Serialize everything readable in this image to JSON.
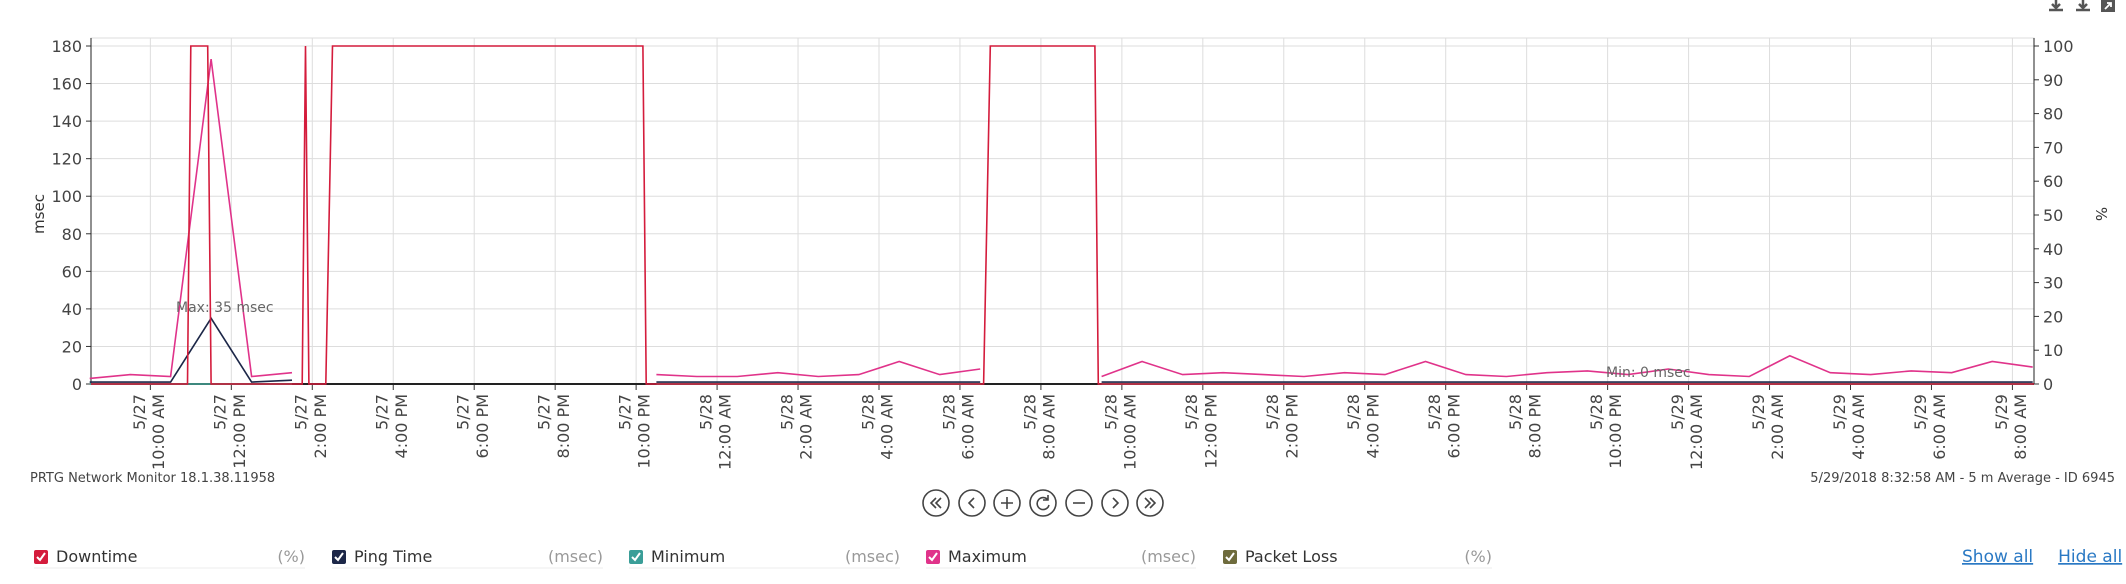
{
  "chart_data": {
    "type": "line",
    "ylabel": "msec",
    "y2label": "%",
    "xlim": [
      "5/27 8:32 AM",
      "5/29 8:32 AM"
    ],
    "xticks": [
      "5/27 10:00 AM",
      "5/27 12:00 PM",
      "5/27 2:00 PM",
      "5/27 4:00 PM",
      "5/27 6:00 PM",
      "5/27 8:00 PM",
      "5/27 10:00 PM",
      "5/28 12:00 AM",
      "5/28 2:00 AM",
      "5/28 4:00 AM",
      "5/28 6:00 AM",
      "5/28 8:00 AM",
      "5/28 10:00 AM",
      "5/28 12:00 PM",
      "5/28 2:00 PM",
      "5/28 4:00 PM",
      "5/28 6:00 PM",
      "5/28 8:00 PM",
      "5/28 10:00 PM",
      "5/29 12:00 AM",
      "5/29 2:00 AM",
      "5/29 4:00 AM",
      "5/29 6:00 AM",
      "5/29 8:00 AM"
    ],
    "ylim": [
      0,
      180
    ],
    "yticks": [
      0,
      20,
      40,
      60,
      80,
      100,
      120,
      140,
      160,
      180
    ],
    "y2lim": [
      0,
      100
    ],
    "y2ticks": [
      0,
      10,
      20,
      30,
      40,
      50,
      60,
      70,
      80,
      90,
      100
    ],
    "grid": true,
    "x": [
      "5/27 8:30 AM",
      "5/27 9:30 AM",
      "5/27 10:30 AM",
      "5/27 11:30 AM",
      "5/27 12:30 PM",
      "5/27 1:30 PM",
      "5/27 2:30 PM",
      "5/27 3:30 PM",
      "5/27 4:30 PM",
      "5/27 5:30 PM",
      "5/27 6:30 PM",
      "5/27 7:30 PM",
      "5/27 8:30 PM",
      "5/27 9:30 PM",
      "5/27 10:30 PM",
      "5/27 11:30 PM",
      "5/28 12:30 AM",
      "5/28 1:30 AM",
      "5/28 2:30 AM",
      "5/28 3:30 AM",
      "5/28 4:30 AM",
      "5/28 5:30 AM",
      "5/28 6:30 AM",
      "5/28 7:30 AM",
      "5/28 8:30 AM",
      "5/28 9:30 AM",
      "5/28 10:30 AM",
      "5/28 11:30 AM",
      "5/28 12:30 PM",
      "5/28 1:30 PM",
      "5/28 2:30 PM",
      "5/28 3:30 PM",
      "5/28 4:30 PM",
      "5/28 5:30 PM",
      "5/28 6:30 PM",
      "5/28 7:30 PM",
      "5/28 8:30 PM",
      "5/28 9:30 PM",
      "5/28 10:30 PM",
      "5/28 11:30 PM",
      "5/29 12:30 AM",
      "5/29 1:30 AM",
      "5/29 2:30 AM",
      "5/29 3:30 AM",
      "5/29 4:30 AM",
      "5/29 5:30 AM",
      "5/29 6:30 AM",
      "5/29 7:30 AM",
      "5/29 8:30 AM"
    ],
    "series": [
      {
        "name": "Downtime",
        "unit": "(%)",
        "color": "#d41c3c",
        "axis": "y2",
        "x": [
          "5/27 8:32 AM",
          "5/27 10:55 AM",
          "5/27 11:00 AM",
          "5/27 11:25 AM",
          "5/27 11:30 AM",
          "5/27 1:45 PM",
          "5/27 1:50 PM",
          "5/27 1:55 PM",
          "5/27 2:20 PM",
          "5/27 2:30 PM",
          "5/27 10:10 PM",
          "5/27 10:15 PM",
          "5/28 6:35 AM",
          "5/28 6:45 AM",
          "5/28 9:20 AM",
          "5/28 9:25 AM",
          "5/29 8:32 AM"
        ],
        "values": [
          0,
          0,
          100,
          100,
          0,
          0,
          100,
          0,
          0,
          100,
          100,
          0,
          0,
          100,
          100,
          0,
          0
        ]
      },
      {
        "name": "Ping Time",
        "unit": "(msec)",
        "color": "#1c2748",
        "values": [
          1,
          1,
          1,
          35,
          1,
          2,
          null,
          null,
          null,
          null,
          null,
          null,
          null,
          null,
          1,
          1,
          1,
          1,
          1,
          1,
          1,
          1,
          1,
          null,
          null,
          1,
          1,
          1,
          1,
          1,
          1,
          1,
          1,
          1,
          1,
          1,
          1,
          1,
          1,
          1,
          1,
          1,
          1,
          1,
          1,
          1,
          1,
          1,
          1
        ]
      },
      {
        "name": "Minimum",
        "unit": "(msec)",
        "color": "#3a9e98",
        "values": [
          0,
          0,
          0,
          0,
          0,
          0,
          null,
          null,
          null,
          null,
          null,
          null,
          null,
          null,
          0,
          0,
          0,
          0,
          0,
          0,
          0,
          0,
          0,
          null,
          null,
          0,
          0,
          0,
          0,
          0,
          0,
          0,
          0,
          0,
          0,
          0,
          0,
          0,
          0,
          0,
          0,
          0,
          0,
          0,
          0,
          0,
          0,
          0,
          0
        ]
      },
      {
        "name": "Maximum",
        "unit": "(msec)",
        "color": "#e0338a",
        "values": [
          3,
          5,
          4,
          173,
          4,
          6,
          null,
          null,
          null,
          null,
          null,
          null,
          null,
          null,
          5,
          4,
          4,
          6,
          4,
          5,
          12,
          5,
          8,
          null,
          null,
          4,
          12,
          5,
          6,
          5,
          4,
          6,
          5,
          12,
          5,
          4,
          6,
          7,
          5,
          8,
          5,
          4,
          15,
          6,
          5,
          7,
          6,
          12,
          9
        ]
      },
      {
        "name": "Packet Loss",
        "unit": "(%)",
        "color": "#6e6b3c",
        "axis": "y2",
        "values": [
          0,
          0,
          0,
          0,
          0,
          0,
          null,
          null,
          null,
          null,
          null,
          null,
          null,
          null,
          0,
          0,
          0,
          0,
          0,
          0,
          0,
          0,
          0,
          null,
          null,
          0,
          0,
          0,
          0,
          0,
          0,
          0,
          0,
          0,
          0,
          0,
          0,
          0,
          0,
          0,
          0,
          0,
          0,
          0,
          0,
          0,
          0,
          0,
          0
        ]
      }
    ],
    "annotations": [
      "Max: 35 msec",
      "Min: 0 msec"
    ],
    "footer_left": "PRTG Network Monitor 18.1.38.11958",
    "footer_right": "5/29/2018 8:32:58 AM - 5 m Average - ID 6945",
    "show_all": "Show all",
    "hide_all": "Hide all"
  }
}
